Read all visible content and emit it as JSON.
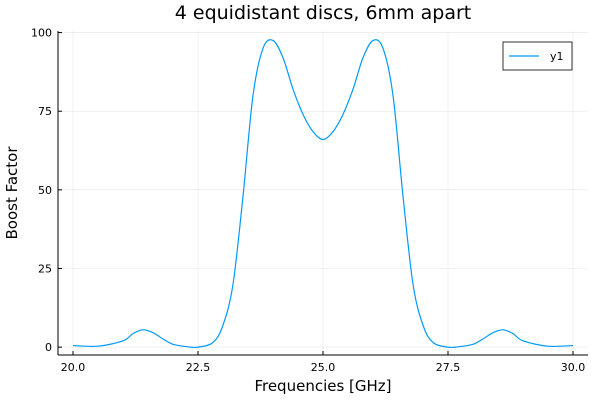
{
  "chart_data": {
    "type": "line",
    "title": "4 equidistant discs, 6mm apart",
    "xlabel": "Frequencies [GHz]",
    "ylabel": "Boost Factor",
    "xlim": [
      19.7,
      30.3
    ],
    "ylim": [
      -2.5,
      100.5
    ],
    "xticks": [
      20.0,
      22.5,
      25.0,
      27.5,
      30.0
    ],
    "xtick_labels": [
      "20.0",
      "22.5",
      "25.0",
      "27.5",
      "30.0"
    ],
    "yticks": [
      0,
      25,
      50,
      75,
      100
    ],
    "ytick_labels": [
      "0",
      "25",
      "50",
      "75",
      "100"
    ],
    "grid": true,
    "legend": "top-right",
    "series": [
      {
        "name": "y1",
        "color": "#009AFA",
        "x": [
          20.0,
          20.5,
          21.0,
          21.2,
          21.4,
          21.6,
          21.8,
          22.0,
          22.3,
          22.5,
          22.8,
          23.0,
          23.2,
          23.4,
          23.6,
          23.8,
          24.0,
          24.2,
          24.4,
          24.6,
          24.8,
          25.0,
          25.2,
          25.4,
          25.6,
          25.8,
          26.0,
          26.2,
          26.4,
          26.6,
          26.8,
          27.0,
          27.2,
          27.5,
          27.7,
          28.0,
          28.2,
          28.4,
          28.6,
          28.8,
          29.0,
          29.5,
          30.0
        ],
        "values": [
          0.5,
          0.3,
          2.0,
          4.3,
          5.5,
          4.6,
          2.6,
          0.9,
          0.1,
          0.0,
          1.5,
          7.0,
          20.0,
          48.0,
          80.0,
          95.0,
          97.5,
          92.0,
          82.0,
          74.0,
          68.5,
          66.0,
          68.5,
          74.0,
          82.0,
          92.0,
          97.5,
          95.0,
          80.0,
          48.0,
          20.0,
          7.0,
          1.5,
          0.0,
          0.1,
          0.9,
          2.6,
          4.6,
          5.5,
          4.3,
          2.0,
          0.3,
          0.5
        ]
      }
    ]
  }
}
